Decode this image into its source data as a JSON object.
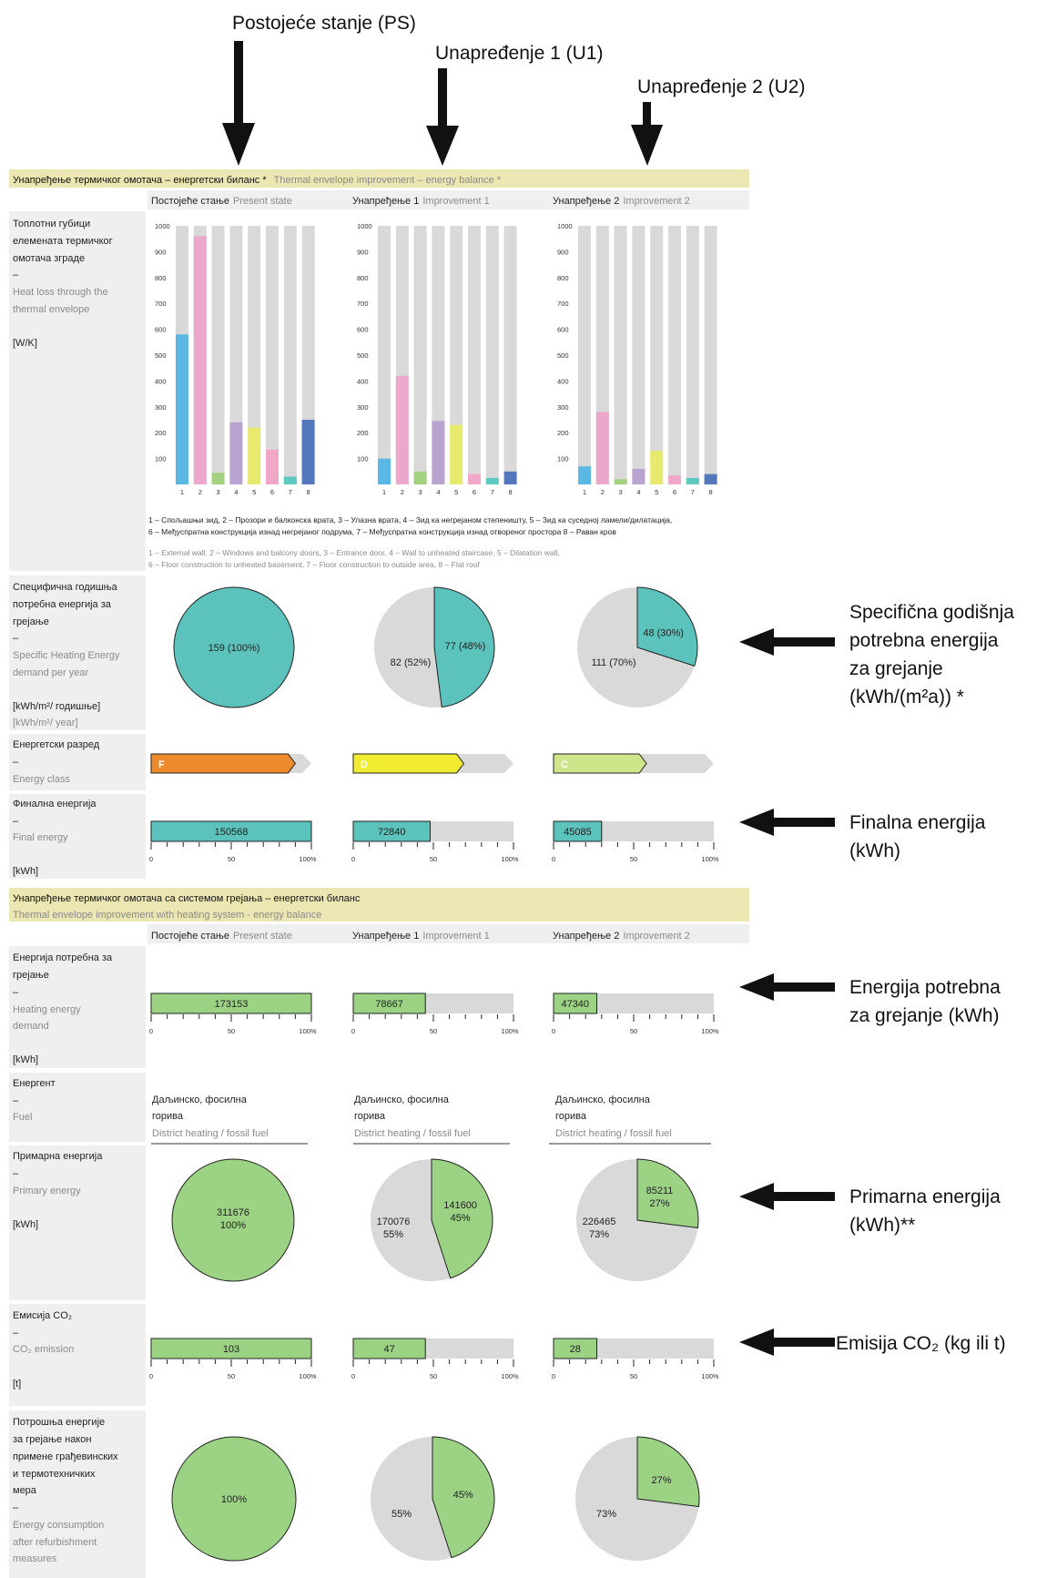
{
  "annotations": {
    "top": [
      "Postojeće stanje (PS)",
      "Unapređenje 1 (U1)",
      "Unapređenje 2 (U2)"
    ],
    "spec_heat": [
      "Specifična godišnja",
      "potrebna energija",
      "za grejanje",
      "(kWh/(m²a)) *"
    ],
    "final_energy": [
      "Finalna energija",
      "(kWh)"
    ],
    "heating_need": [
      "Energija potrebna",
      "za grejanje (kWh)"
    ],
    "primary": [
      "Primarna energija",
      "(kWh)**"
    ],
    "co2": "Emisija CO₂ (kg ili t)"
  },
  "section1": {
    "title_sr": "Унапређење термичког омотача – енергетски биланс *",
    "title_en": "Thermal envelope improvement – energy balance *"
  },
  "section2": {
    "title_sr": "Унапређење термичког омотача са системом грејања – енергетски биланс",
    "title_en": "Thermal envelope improvement with heating system - energy balance"
  },
  "columns": [
    {
      "sr": "Постојеће стање",
      "en": "Present state"
    },
    {
      "sr": "Унапређење 1",
      "en": "Improvement 1"
    },
    {
      "sr": "Унапређење 2",
      "en": "Improvement 2"
    }
  ],
  "rows": {
    "heat_loss": {
      "sr": [
        "Топлотни губици",
        "елемената термичког",
        "омотача зграде"
      ],
      "dash": "–",
      "en": [
        "Heat loss through the",
        "thermal envelope"
      ],
      "unit": "[W/K]"
    },
    "spec_heat": {
      "sr": [
        "Специфична годишња",
        "потребна енергија за",
        "грејање"
      ],
      "dash": "–",
      "en": [
        "Specific Heating Energy",
        "demand per year"
      ],
      "unit": "[kWh/m²/ годишње]",
      "unit_en": "[kWh/m²/ year]"
    },
    "energy_class": {
      "sr": "Енергетски разред",
      "dash": "–",
      "en": "Energy class"
    },
    "final_energy": {
      "sr": "Финална енергија",
      "dash": "–",
      "en": "Final energy",
      "unit": "[kWh]"
    },
    "heating_demand": {
      "sr": [
        "Енергија потребна за",
        "грејање"
      ],
      "dash": "–",
      "en": [
        "Heating energy",
        "demand"
      ],
      "unit": "[kWh]"
    },
    "fuel": {
      "sr": "Енергент",
      "dash": "–",
      "en": "Fuel"
    },
    "primary": {
      "sr": "Примарна енергија",
      "dash": "–",
      "en": "Primary energy",
      "unit": "[kWh]"
    },
    "co2": {
      "sr": "Емисија CO₂",
      "dash": "–",
      "en": "CO₂ emission",
      "unit": "[t]"
    },
    "consumption": {
      "sr": [
        "Потрошња енергије",
        "за грејање након",
        "примене грађевинских",
        "и термотехничких",
        "мера"
      ],
      "dash": "–",
      "en": [
        "Energy consumption",
        "after refurbishment",
        "measures"
      ]
    }
  },
  "legend_sr": [
    "1 – Спољашњи зид, 2 – Прозори и балконска врата, 3 – Улазна врата, 4 – Зид ка негрејаном степеништу, 5 – Зид ка суседној ламели/дилатација,",
    "6 – Међуспратна конструкција изнад  негрејаног подрума, 7 – Међуспратна конструкција изнад отвореног простора  8 – Раван кров"
  ],
  "legend_en": [
    "1 – External wall, 2 – Windows and balcony doors, 3 – Entrance door, 4 – Wall to unheated staircase, 5 – Dilatation wall,",
    "6 – Floor construction to unheated basement, 7 – Floor construction to outside area, 8 – Flat roof"
  ],
  "bar_ticks": [
    "0",
    "50",
    "100%"
  ],
  "chart_data": [
    {
      "type": "bar",
      "title": "Heat loss through the thermal envelope",
      "categories": [
        "1",
        "2",
        "3",
        "4",
        "5",
        "6",
        "7",
        "8"
      ],
      "ylim": [
        0,
        1000
      ],
      "yticks": [
        "100",
        "200",
        "300",
        "400",
        "500",
        "600",
        "700",
        "800",
        "900",
        "1000"
      ],
      "colors": [
        "#5bb7e3",
        "#eba7cc",
        "#a4d17f",
        "#b9a3d1",
        "#e7ea6d",
        "#f1a8c8",
        "#5dc9c0",
        "#5577bb"
      ],
      "series": [
        {
          "values": [
            580,
            960,
            45,
            240,
            220,
            135,
            30,
            250
          ]
        },
        {
          "values": [
            100,
            420,
            50,
            245,
            230,
            40,
            25,
            50
          ]
        },
        {
          "values": [
            70,
            280,
            20,
            60,
            130,
            35,
            25,
            40
          ]
        }
      ]
    },
    {
      "type": "pie",
      "title": "Specific Heating Energy demand per year",
      "series": [
        {
          "value": 159,
          "pct": 100,
          "label": "159 (100%)",
          "rest_label": ""
        },
        {
          "value": 77,
          "pct": 48,
          "label": "77 (48%)",
          "rest_label": "82 (52%)"
        },
        {
          "value": 48,
          "pct": 30,
          "label": "48 (30%)",
          "rest_label": "111 (70%)"
        }
      ]
    },
    {
      "type": "bar",
      "title": "Energy class",
      "series": [
        {
          "label": "F",
          "fill_pct": 90,
          "color": "#ec8a2c"
        },
        {
          "label": "D",
          "fill_pct": 69,
          "color": "#f1ec2f"
        },
        {
          "label": "C",
          "fill_pct": 58,
          "color": "#cfe58a"
        }
      ]
    },
    {
      "type": "bar",
      "title": "Final energy",
      "series": [
        {
          "value": 150568,
          "pct": 100,
          "label": "150568"
        },
        {
          "value": 72840,
          "pct": 48,
          "label": "72840"
        },
        {
          "value": 45085,
          "pct": 30,
          "label": "45085"
        }
      ]
    },
    {
      "type": "bar",
      "title": "Heating energy demand",
      "series": [
        {
          "value": 173153,
          "pct": 100,
          "label": "173153"
        },
        {
          "value": 78667,
          "pct": 45,
          "label": "78667"
        },
        {
          "value": 47340,
          "pct": 27,
          "label": "47340"
        }
      ]
    },
    {
      "type": "table",
      "title": "Fuel",
      "rows": [
        {
          "sr": [
            "Даљинско, фосилна",
            "горива"
          ],
          "en": "District heating / fossil fuel"
        },
        {
          "sr": [
            "Даљинско, фосилна",
            "горива"
          ],
          "en": "District heating / fossil fuel"
        },
        {
          "sr": [
            "Даљинско, фосилна",
            "горива"
          ],
          "en": "District heating / fossil fuel"
        }
      ]
    },
    {
      "type": "pie",
      "title": "Primary energy",
      "series": [
        {
          "value": 311676,
          "pct": 100,
          "label": [
            "311676",
            "100%"
          ],
          "rest_label": []
        },
        {
          "value": 141600,
          "pct": 45,
          "label": [
            "141600",
            "45%"
          ],
          "rest_label": [
            "170076",
            "55%"
          ]
        },
        {
          "value": 85211,
          "pct": 27,
          "label": [
            "85211",
            "27%"
          ],
          "rest_label": [
            "226465",
            "73%"
          ]
        }
      ]
    },
    {
      "type": "bar",
      "title": "CO2 emission",
      "series": [
        {
          "value": 103,
          "pct": 100,
          "label": "103"
        },
        {
          "value": 47,
          "pct": 45,
          "label": "47"
        },
        {
          "value": 28,
          "pct": 27,
          "label": "28"
        }
      ]
    },
    {
      "type": "pie",
      "title": "Energy consumption after refurbishment measures",
      "series": [
        {
          "pct": 100,
          "label": "100%",
          "rest_label": ""
        },
        {
          "pct": 45,
          "label": "45%",
          "rest_label": "55%"
        },
        {
          "pct": 27,
          "label": "27%",
          "rest_label": "73%"
        }
      ]
    }
  ],
  "colors": {
    "band": "#ece6b3",
    "panel": "#efefef",
    "track": "#d9d9d9",
    "teal": "#5bc3bc",
    "green": "#9bd284"
  }
}
